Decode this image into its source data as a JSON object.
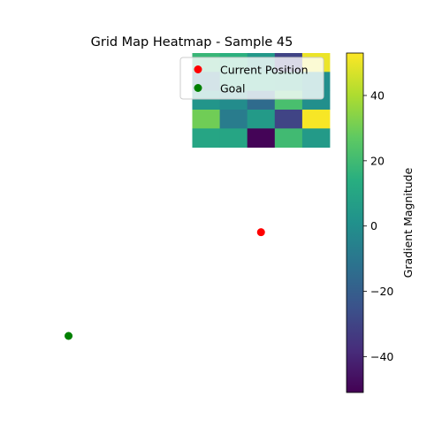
{
  "chart_data": {
    "type": "heatmap",
    "title": "Grid Map Heatmap - Sample 45",
    "colorbar": {
      "label": "Gradient Magnitude",
      "range": [
        -51,
        53
      ],
      "ticks": [
        -40,
        -20,
        0,
        20,
        40
      ],
      "colormap": "viridis"
    },
    "grid": {
      "rows": 5,
      "cols": 5,
      "row_range": [
        0,
        5
      ],
      "col_range": [
        5,
        10
      ],
      "values": [
        [
          18,
          15,
          4,
          -30,
          50
        ],
        [
          -10,
          14,
          12,
          10,
          0
        ],
        [
          3,
          -1,
          -15,
          22,
          0
        ],
        [
          30,
          -8,
          5,
          -30,
          52
        ],
        [
          10,
          10,
          -50,
          20,
          5
        ]
      ]
    },
    "view": {
      "x_range": [
        0,
        10
      ],
      "y_range": [
        0,
        18
      ]
    },
    "points": [
      {
        "name": "Current Position",
        "x": 7.5,
        "y": 9.5,
        "color": "#ff0000"
      },
      {
        "name": "Goal",
        "x": 0.5,
        "y": 15.0,
        "color": "#008000"
      }
    ],
    "legend": {
      "position": "top-right",
      "entries": [
        {
          "label": "Current Position",
          "color": "#ff0000"
        },
        {
          "label": "Goal",
          "color": "#008000"
        }
      ]
    },
    "axis_visible": false
  }
}
